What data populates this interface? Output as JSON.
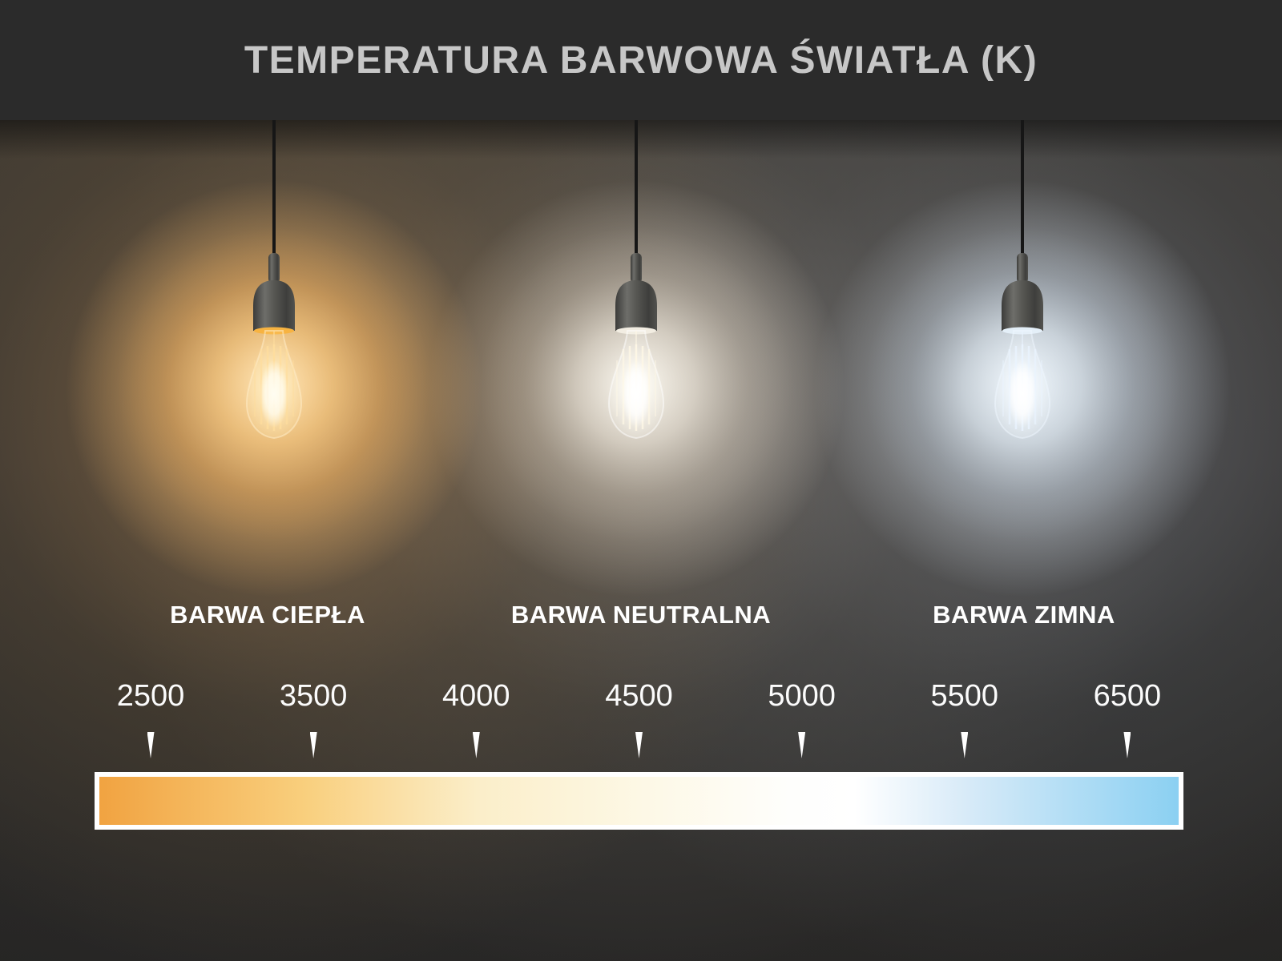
{
  "header": {
    "title": "TEMPERATURA BARWOWA ŚWIATŁA (K)"
  },
  "categories": [
    {
      "label": "BARWA CIEPŁA",
      "kind": "warm"
    },
    {
      "label": "BARWA NEUTRALNA",
      "kind": "neutral"
    },
    {
      "label": "BARWA ZIMNA",
      "kind": "cold"
    }
  ],
  "scale": {
    "unit": "K",
    "ticks": [
      "2500",
      "3500",
      "4000",
      "4500",
      "5000",
      "5500",
      "6500"
    ],
    "gradient": [
      {
        "color": "#F1A341",
        "pos": 0
      },
      {
        "color": "#F9CF7D",
        "pos": 19
      },
      {
        "color": "#FBEEC9",
        "pos": 35
      },
      {
        "color": "#FDF8E5",
        "pos": 50
      },
      {
        "color": "#FEFEFC",
        "pos": 64
      },
      {
        "color": "#FFFFFF",
        "pos": 70
      },
      {
        "color": "#D9EBF8",
        "pos": 80
      },
      {
        "color": "#8BD0F2",
        "pos": 100
      }
    ]
  },
  "bulbs": [
    {
      "kind": "warm",
      "halo_inner": "#FFE9C0",
      "halo_mid": "#F6C275",
      "halo_outer": "#D89A4E",
      "rim": "#F7B341",
      "glass_core": "#FFF1C4",
      "glass_stroke": "rgba(255,236,200,0.55)",
      "filament": "#FFDE9E",
      "core": "#FFFDF2"
    },
    {
      "kind": "neutral",
      "halo_inner": "#FFFDF6",
      "halo_mid": "#E9E3D8",
      "halo_outer": "#B9B2A6",
      "rim": "#F2EDE2",
      "glass_core": "#FFFEF8",
      "glass_stroke": "rgba(255,255,255,0.50)",
      "filament": "#FFF8E6",
      "core": "#FFFFFF"
    },
    {
      "kind": "cold",
      "halo_inner": "#F4FAFF",
      "halo_mid": "#DCE8F2",
      "halo_outer": "#A8B6C4",
      "rim": "#E4EFF8",
      "glass_core": "#F6FBFF",
      "glass_stroke": "rgba(240,248,255,0.50)",
      "filament": "#EAF4FF",
      "core": "#FFFFFF"
    }
  ],
  "colors": {
    "header_bg": "#2B2B2B",
    "title": "#C7C7C7",
    "text": "#FFFFFF",
    "bar_border": "#FFFFFF"
  }
}
